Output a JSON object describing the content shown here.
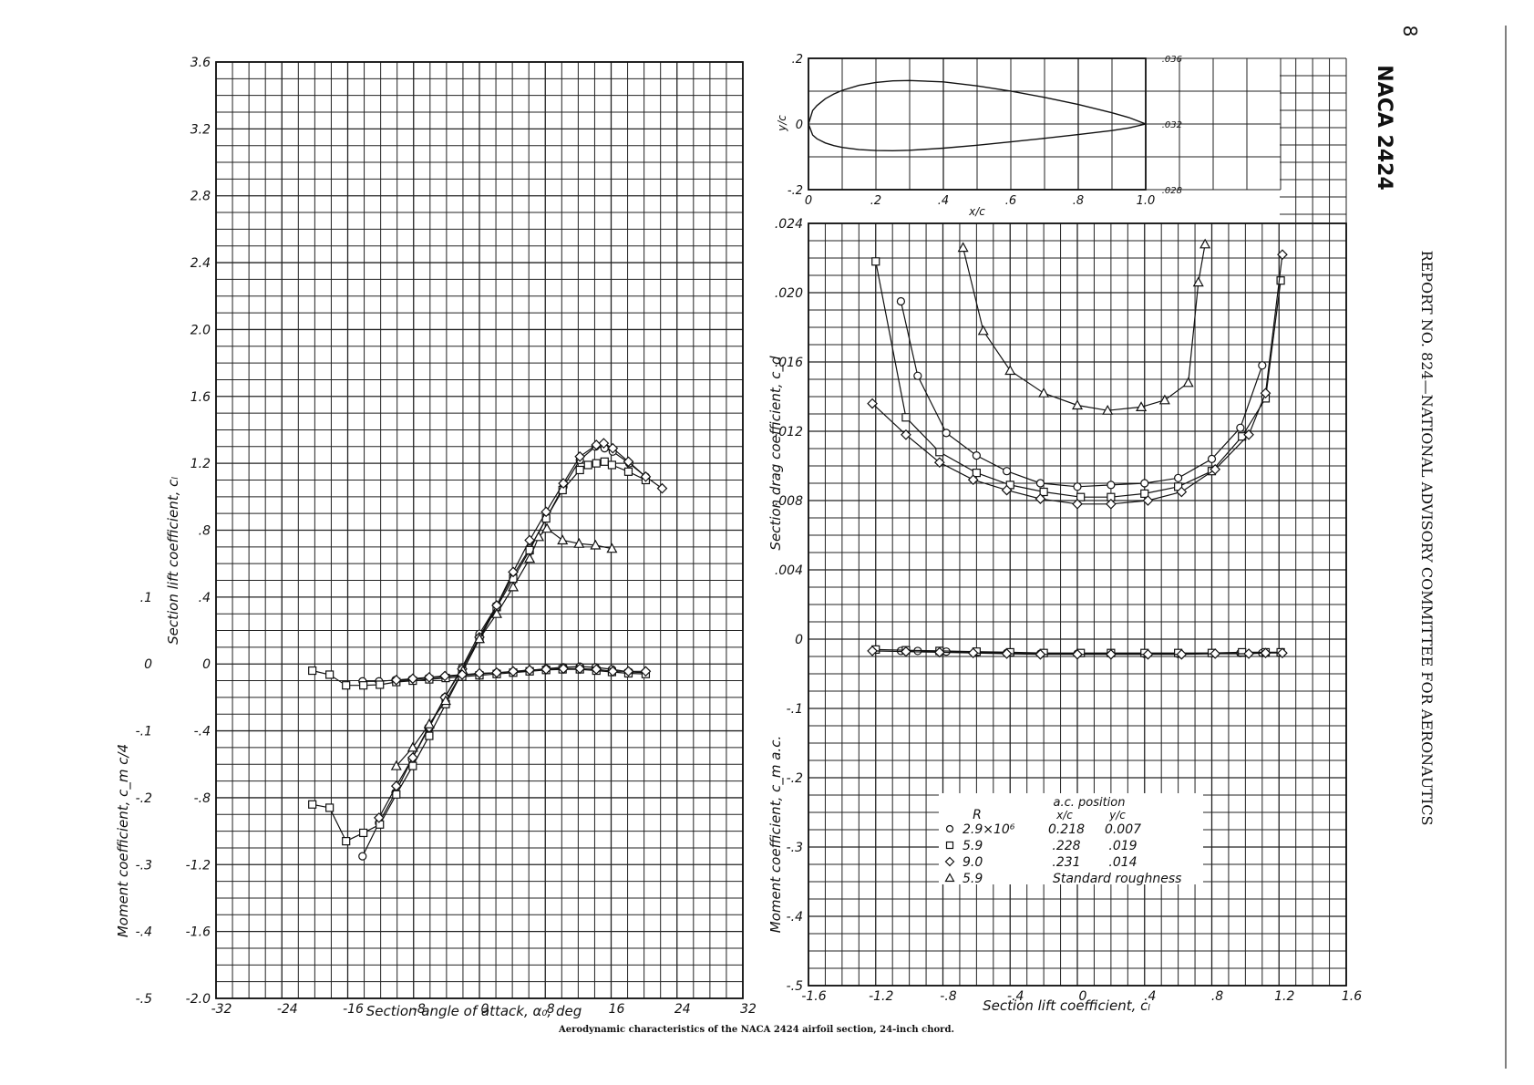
{
  "page": {
    "page_number": "8",
    "airfoil_title": "NACA 2424",
    "running_head": "REPORT NO. 824—NATIONAL ADVISORY COMMITTEE FOR AERONAUTICS",
    "caption": "Aerodynamic characteristics of the NACA 2424 airfoil section, 24-inch chord."
  },
  "labels": {
    "left_xlabel": "Section angle of attack, α₀, deg",
    "left_ylabel_lift": "Section lift coefficient, cₗ",
    "left_ylabel_moment": "Moment coefficient, c_m c/4",
    "right_xlabel": "Section lift coefficient, cₗ",
    "right_ylabel_drag": "Section drag coefficient, c_d",
    "right_ylabel_moment": "Moment coefficient, c_m a.c.",
    "profile_xlabel": "x/c",
    "profile_ylabel": "y/c"
  },
  "legend": {
    "header_R": "R",
    "header_ac": "a.c. position",
    "header_xc": "x/c",
    "header_yc": "y/c",
    "rows": [
      {
        "marker": "circle",
        "symbol": "○",
        "R": "2.9×10⁶",
        "xc": "0.218",
        "yc": "0.007"
      },
      {
        "marker": "square",
        "symbol": "□",
        "R": "5.9",
        "xc": ".228",
        "yc": ".019"
      },
      {
        "marker": "diamond",
        "symbol": "◇",
        "R": "9.0",
        "xc": ".231",
        "yc": ".014"
      },
      {
        "marker": "triangle",
        "symbol": "△",
        "R": "5.9",
        "note": "Standard roughness"
      }
    ]
  },
  "chart_data": [
    {
      "type": "line",
      "id": "lift_and_moment_vs_alpha",
      "xlabel": "Section angle of attack, α₀, deg",
      "ylabel": "Section lift coefficient, cₗ",
      "y2label": "Moment coefficient, c_m c/4",
      "xlim": [
        -32,
        32
      ],
      "ylim": [
        -2.0,
        3.6
      ],
      "y2lim": [
        -0.5,
        0.1
      ],
      "x_ticks": [
        "-32",
        "-24",
        "-16",
        "-8",
        "0",
        "8",
        "16",
        "24",
        "32"
      ],
      "y_ticks": [
        "-2.0",
        "-1.6",
        "-1.2",
        "-.8",
        "-.4",
        "0",
        ".4",
        ".8",
        "1.2",
        "1.6",
        "2.0",
        "2.4",
        "2.8",
        "3.2",
        "3.6"
      ],
      "y2_ticks": [
        "-.5",
        "-.4",
        "-.3",
        "-.2",
        "-.1",
        "0",
        ".1"
      ],
      "grid": true,
      "series": [
        {
          "marker": "circle",
          "quantity": "cl",
          "x": [
            -14.2,
            -12.2,
            -10.2,
            -8.2,
            -6.2,
            -4.2,
            -2.1,
            0,
            2.1,
            4.1,
            6.1,
            8.1,
            10.2,
            12.2,
            14.1,
            15.2,
            16.2,
            18.2,
            20.2
          ],
          "y": [
            -1.15,
            -0.95,
            -0.77,
            -0.57,
            -0.38,
            -0.2,
            -0.02,
            0.18,
            0.35,
            0.53,
            0.69,
            0.87,
            1.06,
            1.22,
            1.3,
            1.29,
            1.27,
            1.2,
            1.12
          ]
        },
        {
          "marker": "square",
          "quantity": "cl",
          "x": [
            -20.3,
            -18.2,
            -16.2,
            -14.1,
            -12.1,
            -10.1,
            -8.1,
            -6.1,
            -4.1,
            -2.1,
            0,
            2.1,
            4.1,
            6.1,
            8.1,
            10.1,
            12.2,
            13.2,
            14.2,
            15.2,
            16.1,
            18.1,
            20.2
          ],
          "y": [
            -0.84,
            -0.86,
            -1.06,
            -1.01,
            -0.96,
            -0.78,
            -0.61,
            -0.43,
            -0.24,
            -0.05,
            0.15,
            0.34,
            0.51,
            0.68,
            0.87,
            1.04,
            1.16,
            1.19,
            1.2,
            1.21,
            1.19,
            1.15,
            1.1
          ]
        },
        {
          "marker": "diamond",
          "quantity": "cl",
          "x": [
            -12.2,
            -10.1,
            -8.1,
            -6.1,
            -4.2,
            -2.1,
            0,
            2.1,
            4.1,
            6.1,
            8.1,
            10.2,
            12.2,
            14.2,
            15.1,
            16.2,
            18.1,
            20.2,
            22.2
          ],
          "y": [
            -0.92,
            -0.73,
            -0.56,
            -0.38,
            -0.2,
            -0.03,
            0.16,
            0.35,
            0.55,
            0.74,
            0.91,
            1.08,
            1.24,
            1.31,
            1.32,
            1.29,
            1.21,
            1.12,
            1.05
          ]
        },
        {
          "marker": "triangle",
          "quantity": "cl",
          "x": [
            -10.1,
            -8.1,
            -6.1,
            -4.1,
            -2.0,
            0,
            2.1,
            4.1,
            6.1,
            7.2,
            8.2,
            10.1,
            12.1,
            14.1,
            16.1
          ],
          "y": [
            -0.61,
            -0.5,
            -0.36,
            -0.22,
            -0.04,
            0.15,
            0.3,
            0.46,
            0.63,
            0.76,
            0.81,
            0.74,
            0.72,
            0.71,
            0.69
          ]
        },
        {
          "marker": "circle",
          "quantity": "cm",
          "x": [
            -14.2,
            -12.2,
            -10.2,
            -8.2,
            -6.2,
            -4.2,
            -2.1,
            0,
            2.1,
            4.1,
            6.1,
            8.1,
            10.2,
            12.2,
            14.1,
            16.1,
            18.2,
            20.2
          ],
          "y": [
            -0.026,
            -0.026,
            -0.024,
            -0.023,
            -0.021,
            -0.019,
            -0.017,
            -0.015,
            -0.013,
            -0.012,
            -0.01,
            -0.007,
            -0.005,
            -0.004,
            -0.005,
            -0.008,
            -0.012,
            -0.013
          ]
        },
        {
          "marker": "square",
          "quantity": "cm",
          "x": [
            -20.3,
            -18.2,
            -16.2,
            -14.1,
            -12.1,
            -10.1,
            -8.1,
            -6.1,
            -4.1,
            -2.1,
            0,
            2.1,
            4.1,
            6.1,
            8.1,
            10.1,
            12.2,
            14.2,
            16.1,
            18.1,
            20.2
          ],
          "y": [
            -0.01,
            -0.016,
            -0.032,
            -0.032,
            -0.031,
            -0.027,
            -0.025,
            -0.023,
            -0.021,
            -0.019,
            -0.017,
            -0.015,
            -0.013,
            -0.011,
            -0.009,
            -0.008,
            -0.008,
            -0.01,
            -0.012,
            -0.014,
            -0.015
          ]
        },
        {
          "marker": "diamond",
          "quantity": "cm",
          "x": [
            -10.1,
            -8.1,
            -6.1,
            -4.2,
            -2.1,
            0,
            2.1,
            4.1,
            6.1,
            8.1,
            10.2,
            12.2,
            14.2,
            16.2,
            18.1,
            20.2
          ],
          "y": [
            -0.024,
            -0.022,
            -0.02,
            -0.018,
            -0.016,
            -0.014,
            -0.013,
            -0.011,
            -0.009,
            -0.008,
            -0.007,
            -0.007,
            -0.008,
            -0.011,
            -0.011,
            -0.011
          ]
        }
      ]
    },
    {
      "type": "line",
      "id": "airfoil_profile",
      "xlabel": "x/c",
      "ylabel": "y/c",
      "xlim": [
        0,
        1.0
      ],
      "ylim": [
        -0.2,
        0.2
      ],
      "x_ticks": [
        "0",
        ".2",
        ".4",
        ".6",
        ".8",
        "1.0"
      ],
      "y_ticks": [
        "-.2",
        "0",
        ".2"
      ],
      "right_ticks": [
        ".028",
        ".032",
        ".036"
      ],
      "grid": true,
      "series": [
        {
          "name_visible": false,
          "x": [
            0,
            0.0125,
            0.025,
            0.05,
            0.075,
            0.1,
            0.15,
            0.2,
            0.25,
            0.3,
            0.4,
            0.5,
            0.6,
            0.7,
            0.8,
            0.9,
            0.95,
            1.0
          ],
          "upper": [
            0,
            0.0411,
            0.0561,
            0.0769,
            0.0915,
            0.1025,
            0.1177,
            0.1268,
            0.1313,
            0.1326,
            0.1282,
            0.1162,
            0.1002,
            0.0812,
            0.0594,
            0.0341,
            0.0198,
            0
          ],
          "lower": [
            0,
            -0.0336,
            -0.0449,
            -0.0579,
            -0.0659,
            -0.0715,
            -0.078,
            -0.0809,
            -0.0814,
            -0.0799,
            -0.0736,
            -0.0646,
            -0.0544,
            -0.0436,
            -0.0323,
            -0.0199,
            -0.012,
            0
          ]
        }
      ]
    },
    {
      "type": "line",
      "id": "drag_and_moment_vs_cl",
      "xlabel": "Section lift coefficient, cₗ",
      "ylabel": "Section drag coefficient, c_d",
      "y2label": "Moment coefficient, c_m a.c.",
      "xlim": [
        -1.6,
        1.6
      ],
      "ylim": [
        -0.02,
        0.024
      ],
      "y2lim": [
        -0.5,
        0
      ],
      "x_ticks": [
        "-1.6",
        "-1.2",
        "-.8",
        "-.4",
        "0",
        ".4",
        ".8",
        "1.2",
        "1.6"
      ],
      "y_ticks": [
        "0",
        ".004",
        ".008",
        ".012",
        ".016",
        ".020",
        ".024"
      ],
      "y2_ticks": [
        "-.5",
        "-.4",
        "-.3",
        "-.2",
        "-.1",
        "0"
      ],
      "grid": true,
      "series": [
        {
          "marker": "circle",
          "quantity": "cd",
          "x": [
            -1.05,
            -0.95,
            -0.78,
            -0.6,
            -0.42,
            -0.22,
            0,
            0.2,
            0.4,
            0.6,
            0.8,
            0.97,
            1.1
          ],
          "y": [
            0.0195,
            0.0152,
            0.0119,
            0.0106,
            0.0097,
            0.009,
            0.0088,
            0.0089,
            0.009,
            0.0093,
            0.0104,
            0.0122,
            0.0158
          ]
        },
        {
          "marker": "square",
          "quantity": "cd",
          "x": [
            -1.2,
            -1.02,
            -0.82,
            -0.6,
            -0.4,
            -0.2,
            0.02,
            0.2,
            0.4,
            0.6,
            0.8,
            0.98,
            1.12,
            1.21
          ],
          "y": [
            0.0218,
            0.0128,
            0.0108,
            0.0096,
            0.0089,
            0.0085,
            0.0082,
            0.0082,
            0.0084,
            0.0088,
            0.0097,
            0.0117,
            0.0139,
            0.0207
          ]
        },
        {
          "marker": "diamond",
          "quantity": "cd",
          "x": [
            -1.22,
            -1.02,
            -0.82,
            -0.62,
            -0.42,
            -0.22,
            0,
            0.2,
            0.42,
            0.62,
            0.82,
            1.02,
            1.12,
            1.22
          ],
          "y": [
            0.0136,
            0.0118,
            0.0102,
            0.0092,
            0.0086,
            0.0081,
            0.0078,
            0.0078,
            0.008,
            0.0085,
            0.0098,
            0.0118,
            0.0142,
            0.0222
          ]
        },
        {
          "marker": "triangle",
          "quantity": "cd",
          "x": [
            -0.68,
            -0.56,
            -0.4,
            -0.2,
            0,
            0.18,
            0.38,
            0.52,
            0.66,
            0.72,
            0.76
          ],
          "y": [
            0.0226,
            0.0178,
            0.0155,
            0.0142,
            0.0135,
            0.0132,
            0.0134,
            0.0138,
            0.0148,
            0.0206,
            0.0228
          ]
        },
        {
          "marker": "circle",
          "quantity": "cm",
          "x": [
            -1.05,
            -0.95,
            -0.78,
            -0.6,
            -0.42,
            -0.22,
            0,
            0.2,
            0.4,
            0.6,
            0.8,
            0.97,
            1.1
          ],
          "y": [
            -0.017,
            -0.017,
            -0.018,
            -0.019,
            -0.02,
            -0.021,
            -0.021,
            -0.021,
            -0.021,
            -0.021,
            -0.02,
            -0.02,
            -0.02
          ]
        },
        {
          "marker": "square",
          "quantity": "cm",
          "x": [
            -1.2,
            -1.02,
            -0.82,
            -0.6,
            -0.4,
            -0.2,
            0.02,
            0.2,
            0.4,
            0.6,
            0.8,
            0.98,
            1.12,
            1.21
          ],
          "y": [
            -0.015,
            -0.016,
            -0.017,
            -0.018,
            -0.019,
            -0.02,
            -0.02,
            -0.02,
            -0.02,
            -0.02,
            -0.02,
            -0.019,
            -0.019,
            -0.019
          ]
        },
        {
          "marker": "diamond",
          "quantity": "cm",
          "x": [
            -1.22,
            -1.02,
            -0.82,
            -0.62,
            -0.42,
            -0.22,
            0,
            0.2,
            0.42,
            0.62,
            0.82,
            1.02,
            1.12,
            1.22
          ],
          "y": [
            -0.017,
            -0.018,
            -0.019,
            -0.02,
            -0.021,
            -0.022,
            -0.022,
            -0.022,
            -0.022,
            -0.022,
            -0.021,
            -0.021,
            -0.02,
            -0.02
          ]
        }
      ]
    }
  ]
}
